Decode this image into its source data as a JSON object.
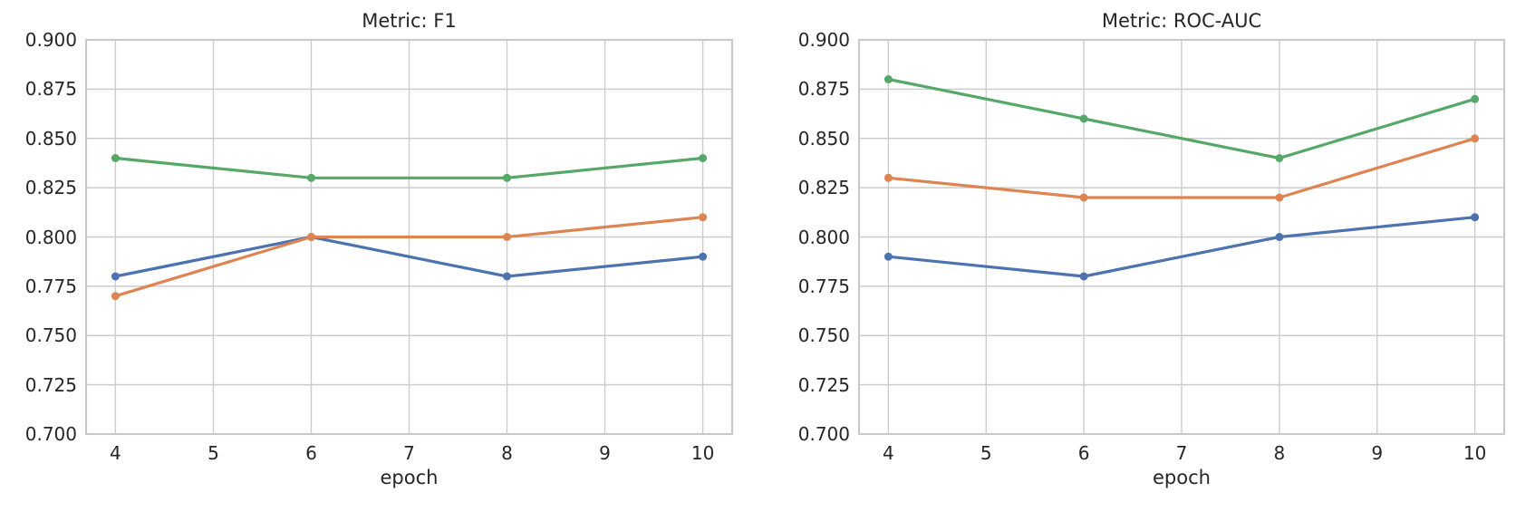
{
  "figure": {
    "background": "#ffffff",
    "text_color": "#262626",
    "grid_color": "#cccccc",
    "spine_color": "#c9c9c9"
  },
  "chart_data": [
    {
      "type": "line",
      "title": "Metric: F1",
      "xlabel": "epoch",
      "ylabel": "",
      "x": [
        4,
        6,
        8,
        10
      ],
      "xticks": [
        4,
        5,
        6,
        7,
        8,
        9,
        10
      ],
      "ytick_labels": [
        "0.700",
        "0.725",
        "0.750",
        "0.775",
        "0.800",
        "0.825",
        "0.850",
        "0.875",
        "0.900"
      ],
      "xlim": [
        3.7,
        10.3
      ],
      "ylim": [
        0.7,
        0.9
      ],
      "grid": true,
      "legend": "none",
      "marker": "circle",
      "series": [
        {
          "name": "blue",
          "color": "#4C72B0",
          "values": [
            0.78,
            0.8,
            0.78,
            0.79
          ]
        },
        {
          "name": "orange",
          "color": "#DD8452",
          "values": [
            0.77,
            0.8,
            0.8,
            0.81
          ]
        },
        {
          "name": "green",
          "color": "#55A868",
          "values": [
            0.84,
            0.83,
            0.83,
            0.84
          ]
        }
      ]
    },
    {
      "type": "line",
      "title": "Metric: ROC-AUC",
      "xlabel": "epoch",
      "ylabel": "",
      "x": [
        4,
        6,
        8,
        10
      ],
      "xticks": [
        4,
        5,
        6,
        7,
        8,
        9,
        10
      ],
      "ytick_labels": [
        "0.700",
        "0.725",
        "0.750",
        "0.775",
        "0.800",
        "0.825",
        "0.850",
        "0.875",
        "0.900"
      ],
      "xlim": [
        3.7,
        10.3
      ],
      "ylim": [
        0.7,
        0.9
      ],
      "grid": true,
      "legend": "none",
      "marker": "circle",
      "series": [
        {
          "name": "blue",
          "color": "#4C72B0",
          "values": [
            0.79,
            0.78,
            0.8,
            0.81
          ]
        },
        {
          "name": "orange",
          "color": "#DD8452",
          "values": [
            0.83,
            0.82,
            0.82,
            0.85
          ]
        },
        {
          "name": "green",
          "color": "#55A868",
          "values": [
            0.88,
            0.86,
            0.84,
            0.87
          ]
        }
      ]
    }
  ]
}
